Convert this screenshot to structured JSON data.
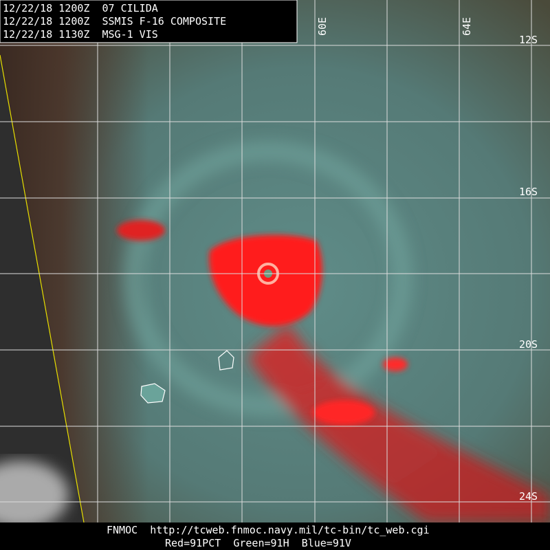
{
  "header": {
    "lines": [
      "12/22/18 1200Z  07 CILIDA",
      "12/22/18 1200Z  SSMIS F-16 COMPOSITE",
      "12/22/18 1130Z  MSG-1 VIS"
    ]
  },
  "grid_labels": {
    "latitudes": [
      "12S",
      "16S",
      "20S",
      "24S"
    ],
    "longitudes": [
      "60E",
      "64E"
    ]
  },
  "footer": {
    "lines": [
      "FNMOC  http://tcweb.fnmoc.navy.mil/tc-bin/tc_web.cgi",
      "Red=91PCT  Green=91H  Blue=91V"
    ]
  }
}
